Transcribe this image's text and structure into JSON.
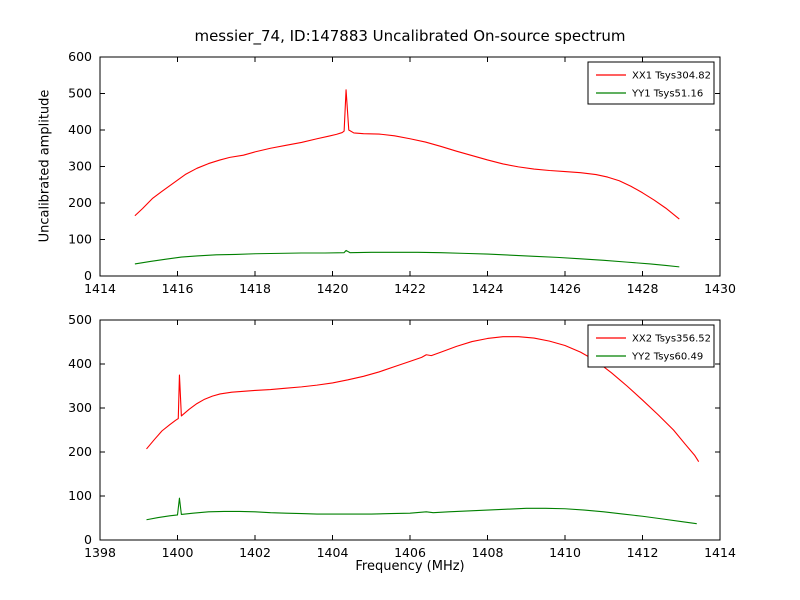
{
  "title": "messier_74, ID:147883 Uncalibrated On-source spectrum",
  "axis_labels": {
    "x": "Frequency (MHz)",
    "y": "Uncalibrated amplitude"
  },
  "colors": {
    "xx_line": "#ff0000",
    "yy_line": "#008000",
    "frame": "#000000"
  },
  "chart_data": [
    {
      "type": "line",
      "title": "",
      "xlim": [
        1414,
        1430
      ],
      "ylim": [
        0,
        600
      ],
      "xticks": [
        1414,
        1416,
        1418,
        1420,
        1422,
        1424,
        1426,
        1428,
        1430
      ],
      "yticks": [
        0,
        100,
        200,
        300,
        400,
        500,
        600
      ],
      "grid": false,
      "legend_position": "upper right",
      "series": [
        {
          "name": "XX1 Tsys304.82",
          "color": "#ff0000",
          "points": [
            [
              1414.9,
              165
            ],
            [
              1415.1,
              185
            ],
            [
              1415.35,
              212
            ],
            [
              1415.6,
              232
            ],
            [
              1415.9,
              255
            ],
            [
              1416.2,
              278
            ],
            [
              1416.5,
              295
            ],
            [
              1416.8,
              308
            ],
            [
              1417.1,
              318
            ],
            [
              1417.35,
              325
            ],
            [
              1417.7,
              331
            ],
            [
              1418.0,
              340
            ],
            [
              1418.4,
              350
            ],
            [
              1418.8,
              358
            ],
            [
              1419.2,
              366
            ],
            [
              1419.6,
              376
            ],
            [
              1419.9,
              383
            ],
            [
              1420.1,
              388
            ],
            [
              1420.25,
              393
            ],
            [
              1420.3,
              397
            ],
            [
              1420.35,
              510
            ],
            [
              1420.42,
              400
            ],
            [
              1420.55,
              392
            ],
            [
              1420.8,
              390
            ],
            [
              1421.2,
              389
            ],
            [
              1421.6,
              384
            ],
            [
              1422.0,
              376
            ],
            [
              1422.4,
              367
            ],
            [
              1422.8,
              355
            ],
            [
              1423.2,
              342
            ],
            [
              1423.6,
              330
            ],
            [
              1424.0,
              318
            ],
            [
              1424.4,
              307
            ],
            [
              1424.8,
              299
            ],
            [
              1425.2,
              293
            ],
            [
              1425.6,
              289
            ],
            [
              1426.0,
              286
            ],
            [
              1426.4,
              283
            ],
            [
              1426.8,
              278
            ],
            [
              1427.1,
              271
            ],
            [
              1427.4,
              261
            ],
            [
              1427.7,
              246
            ],
            [
              1428.0,
              228
            ],
            [
              1428.3,
              208
            ],
            [
              1428.6,
              186
            ],
            [
              1428.95,
              156
            ]
          ]
        },
        {
          "name": "YY1 Tsys51.16",
          "color": "#008000",
          "points": [
            [
              1414.9,
              33
            ],
            [
              1415.3,
              40
            ],
            [
              1415.7,
              46
            ],
            [
              1416.1,
              52
            ],
            [
              1416.5,
              55
            ],
            [
              1417.0,
              58
            ],
            [
              1417.5,
              59
            ],
            [
              1418.0,
              61
            ],
            [
              1418.6,
              62
            ],
            [
              1419.2,
              63
            ],
            [
              1419.8,
              63
            ],
            [
              1420.3,
              64
            ],
            [
              1420.35,
              70
            ],
            [
              1420.45,
              64
            ],
            [
              1421.0,
              65
            ],
            [
              1421.6,
              65
            ],
            [
              1422.2,
              65
            ],
            [
              1422.8,
              64
            ],
            [
              1423.4,
              62
            ],
            [
              1424.0,
              60
            ],
            [
              1424.6,
              57
            ],
            [
              1425.2,
              54
            ],
            [
              1425.8,
              51
            ],
            [
              1426.4,
              47
            ],
            [
              1427.0,
              43
            ],
            [
              1427.6,
              38
            ],
            [
              1428.2,
              33
            ],
            [
              1428.6,
              29
            ],
            [
              1428.95,
              25
            ]
          ]
        }
      ]
    },
    {
      "type": "line",
      "title": "",
      "xlim": [
        1398,
        1414
      ],
      "ylim": [
        0,
        500
      ],
      "xticks": [
        1398,
        1400,
        1402,
        1404,
        1406,
        1408,
        1410,
        1412,
        1414
      ],
      "yticks": [
        0,
        100,
        200,
        300,
        400,
        500
      ],
      "grid": false,
      "legend_position": "upper right",
      "series": [
        {
          "name": "XX2 Tsys356.52",
          "color": "#ff0000",
          "points": [
            [
              1399.2,
              207
            ],
            [
              1399.4,
              228
            ],
            [
              1399.6,
              248
            ],
            [
              1399.8,
              262
            ],
            [
              1399.95,
              272
            ],
            [
              1400.02,
              276
            ],
            [
              1400.05,
              375
            ],
            [
              1400.1,
              282
            ],
            [
              1400.3,
              297
            ],
            [
              1400.5,
              310
            ],
            [
              1400.7,
              320
            ],
            [
              1400.9,
              327
            ],
            [
              1401.1,
              332
            ],
            [
              1401.4,
              336
            ],
            [
              1401.7,
              338
            ],
            [
              1402.0,
              340
            ],
            [
              1402.4,
              342
            ],
            [
              1402.8,
              345
            ],
            [
              1403.2,
              348
            ],
            [
              1403.6,
              352
            ],
            [
              1404.0,
              357
            ],
            [
              1404.4,
              364
            ],
            [
              1404.8,
              372
            ],
            [
              1405.2,
              382
            ],
            [
              1405.6,
              394
            ],
            [
              1406.0,
              406
            ],
            [
              1406.3,
              415
            ],
            [
              1406.42,
              421
            ],
            [
              1406.55,
              419
            ],
            [
              1406.8,
              427
            ],
            [
              1407.2,
              440
            ],
            [
              1407.6,
              451
            ],
            [
              1408.0,
              458
            ],
            [
              1408.4,
              462
            ],
            [
              1408.8,
              462
            ],
            [
              1409.2,
              459
            ],
            [
              1409.6,
              452
            ],
            [
              1410.0,
              442
            ],
            [
              1410.4,
              427
            ],
            [
              1410.8,
              407
            ],
            [
              1411.2,
              380
            ],
            [
              1411.6,
              350
            ],
            [
              1412.0,
              318
            ],
            [
              1412.4,
              285
            ],
            [
              1412.8,
              250
            ],
            [
              1413.1,
              218
            ],
            [
              1413.35,
              192
            ],
            [
              1413.45,
              178
            ]
          ]
        },
        {
          "name": "YY2 Tsys60.49",
          "color": "#008000",
          "points": [
            [
              1399.2,
              46
            ],
            [
              1399.5,
              51
            ],
            [
              1399.8,
              55
            ],
            [
              1400.0,
              57
            ],
            [
              1400.05,
              95
            ],
            [
              1400.1,
              58
            ],
            [
              1400.4,
              61
            ],
            [
              1400.8,
              64
            ],
            [
              1401.2,
              65
            ],
            [
              1401.6,
              65
            ],
            [
              1402.0,
              64
            ],
            [
              1402.4,
              62
            ],
            [
              1402.8,
              61
            ],
            [
              1403.2,
              60
            ],
            [
              1403.6,
              59
            ],
            [
              1404.0,
              59
            ],
            [
              1404.5,
              59
            ],
            [
              1405.0,
              59
            ],
            [
              1405.5,
              60
            ],
            [
              1406.0,
              61
            ],
            [
              1406.42,
              64
            ],
            [
              1406.6,
              62
            ],
            [
              1407.0,
              64
            ],
            [
              1407.5,
              66
            ],
            [
              1408.0,
              68
            ],
            [
              1408.5,
              70
            ],
            [
              1409.0,
              72
            ],
            [
              1409.5,
              72
            ],
            [
              1410.0,
              71
            ],
            [
              1410.5,
              68
            ],
            [
              1411.0,
              64
            ],
            [
              1411.5,
              59
            ],
            [
              1412.0,
              54
            ],
            [
              1412.5,
              48
            ],
            [
              1413.0,
              42
            ],
            [
              1413.4,
              37
            ]
          ]
        }
      ]
    }
  ]
}
